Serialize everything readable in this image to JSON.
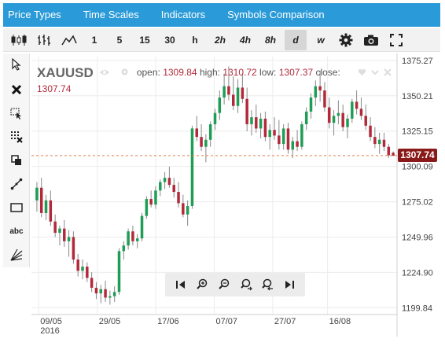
{
  "menu": [
    "Price Types",
    "Time Scales",
    "Indicators",
    "Symbols Comparison"
  ],
  "timeframes": [
    "1",
    "5",
    "15",
    "30",
    "h",
    "2h",
    "4h",
    "8h",
    "d",
    "w"
  ],
  "active_timeframe": "d",
  "symbol": {
    "name": "XAUUSD",
    "open_label": "open:",
    "open": "1309.84",
    "high_label": "high:",
    "high": "1310.72",
    "low_label": "low:",
    "low": "1307.37",
    "close_label": "close:",
    "close": "1307.74"
  },
  "last_price": "1307.74",
  "colors": {
    "menubar": "#2a9ad8",
    "bull": "#1f9d55",
    "bear": "#b22a3a",
    "last_tag": "#8a1a1a",
    "last_line": "#e0804a"
  },
  "icons": {
    "toolbar": [
      "candlestick-icon",
      "ohlc-bars-icon",
      "line-chart-icon",
      "gear-icon",
      "camera-icon",
      "fullscreen-icon"
    ],
    "sidebar": [
      "cursor-icon",
      "close-icon",
      "select-icon",
      "delete-drawings-icon",
      "clone-icon",
      "trendline-icon",
      "rectangle-icon",
      "text-icon",
      "fan-icon"
    ],
    "nav": [
      "scroll-left-icon",
      "zoom-in-icon",
      "zoom-out-icon",
      "zoom-in-range-icon",
      "zoom-out-range-icon",
      "scroll-right-icon"
    ]
  },
  "sidebar_labels": {
    "text_tool": "abc"
  },
  "chart_data": {
    "type": "candlestick",
    "y_ticks": [
      "1375.27",
      "1350.21",
      "1325.15",
      "1300.09",
      "1275.02",
      "1249.96",
      "1224.90",
      "1199.84"
    ],
    "x_ticks": [
      "09/05",
      "29/05",
      "17/06",
      "07/07",
      "27/07",
      "16/08"
    ],
    "x_year": "2016",
    "ylim": [
      1195,
      1378
    ],
    "last_value": 1307.74,
    "candles": [
      [
        1276,
        1289,
        1268,
        1285
      ],
      [
        1285,
        1292,
        1264,
        1267
      ],
      [
        1267,
        1280,
        1262,
        1276
      ],
      [
        1276,
        1283,
        1258,
        1261
      ],
      [
        1261,
        1266,
        1250,
        1253
      ],
      [
        1253,
        1258,
        1244,
        1256
      ],
      [
        1256,
        1262,
        1243,
        1247
      ],
      [
        1247,
        1255,
        1236,
        1250
      ],
      [
        1250,
        1254,
        1231,
        1234
      ],
      [
        1234,
        1238,
        1222,
        1226
      ],
      [
        1226,
        1234,
        1220,
        1229
      ],
      [
        1229,
        1232,
        1218,
        1221
      ],
      [
        1221,
        1225,
        1211,
        1214
      ],
      [
        1214,
        1218,
        1206,
        1210
      ],
      [
        1210,
        1216,
        1203,
        1213
      ],
      [
        1213,
        1219,
        1204,
        1207
      ],
      [
        1207,
        1212,
        1202,
        1208
      ],
      [
        1208,
        1215,
        1204,
        1211
      ],
      [
        1211,
        1242,
        1209,
        1240
      ],
      [
        1240,
        1247,
        1234,
        1244
      ],
      [
        1244,
        1256,
        1241,
        1254
      ],
      [
        1254,
        1258,
        1244,
        1247
      ],
      [
        1247,
        1252,
        1242,
        1249
      ],
      [
        1249,
        1267,
        1247,
        1265
      ],
      [
        1265,
        1279,
        1263,
        1277
      ],
      [
        1277,
        1283,
        1271,
        1273
      ],
      [
        1273,
        1286,
        1270,
        1283
      ],
      [
        1283,
        1291,
        1279,
        1289
      ],
      [
        1289,
        1296,
        1284,
        1292
      ],
      [
        1292,
        1300,
        1285,
        1287
      ],
      [
        1287,
        1292,
        1278,
        1282
      ],
      [
        1282,
        1289,
        1271,
        1274
      ],
      [
        1274,
        1280,
        1264,
        1266
      ],
      [
        1266,
        1276,
        1258,
        1272
      ],
      [
        1272,
        1329,
        1270,
        1327
      ],
      [
        1327,
        1336,
        1318,
        1321
      ],
      [
        1321,
        1330,
        1311,
        1314
      ],
      [
        1314,
        1323,
        1303,
        1319
      ],
      [
        1319,
        1332,
        1314,
        1330
      ],
      [
        1330,
        1341,
        1326,
        1338
      ],
      [
        1338,
        1354,
        1333,
        1349
      ],
      [
        1349,
        1366,
        1344,
        1357
      ],
      [
        1357,
        1371,
        1347,
        1351
      ],
      [
        1351,
        1364,
        1340,
        1343
      ],
      [
        1343,
        1362,
        1338,
        1356
      ],
      [
        1356,
        1366,
        1345,
        1348
      ],
      [
        1348,
        1356,
        1325,
        1330
      ],
      [
        1330,
        1340,
        1322,
        1335
      ],
      [
        1335,
        1344,
        1324,
        1327
      ],
      [
        1327,
        1338,
        1320,
        1334
      ],
      [
        1334,
        1339,
        1318,
        1321
      ],
      [
        1321,
        1330,
        1312,
        1326
      ],
      [
        1326,
        1335,
        1319,
        1322
      ],
      [
        1322,
        1333,
        1312,
        1316
      ],
      [
        1316,
        1330,
        1312,
        1327
      ],
      [
        1327,
        1331,
        1309,
        1312
      ],
      [
        1312,
        1321,
        1306,
        1318
      ],
      [
        1318,
        1326,
        1311,
        1314
      ],
      [
        1314,
        1332,
        1312,
        1330
      ],
      [
        1330,
        1342,
        1326,
        1339
      ],
      [
        1339,
        1352,
        1334,
        1349
      ],
      [
        1349,
        1361,
        1343,
        1357
      ],
      [
        1357,
        1368,
        1346,
        1354
      ],
      [
        1354,
        1360,
        1339,
        1342
      ],
      [
        1342,
        1349,
        1327,
        1331
      ],
      [
        1331,
        1340,
        1322,
        1336
      ],
      [
        1336,
        1347,
        1330,
        1338
      ],
      [
        1338,
        1344,
        1325,
        1328
      ],
      [
        1328,
        1337,
        1320,
        1334
      ],
      [
        1334,
        1348,
        1331,
        1346
      ],
      [
        1346,
        1354,
        1337,
        1341
      ],
      [
        1341,
        1349,
        1333,
        1336
      ],
      [
        1336,
        1344,
        1326,
        1329
      ],
      [
        1329,
        1335,
        1318,
        1321
      ],
      [
        1321,
        1328,
        1313,
        1316
      ],
      [
        1316,
        1324,
        1309,
        1319
      ],
      [
        1319,
        1324,
        1311,
        1314
      ],
      [
        1314,
        1316,
        1306,
        1308
      ],
      [
        1309.84,
        1310.72,
        1307.37,
        1307.74
      ]
    ]
  }
}
